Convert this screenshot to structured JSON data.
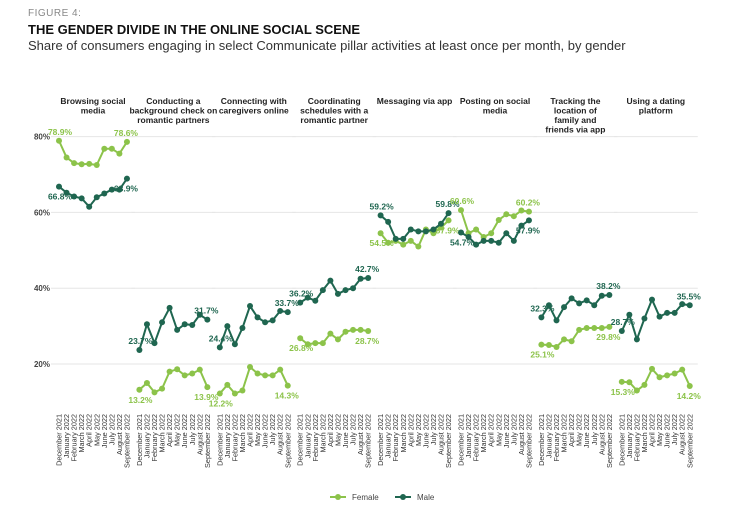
{
  "figure_label": "FIGURE 4:",
  "title": "THE GENDER DIVIDE IN THE ONLINE SOCIAL SCENE",
  "subtitle": "Share of consumers engaging in select Communicate pillar activities at least once per month, by gender",
  "chart_data": {
    "type": "line",
    "title": "THE GENDER DIVIDE IN THE ONLINE SOCIAL SCENE",
    "ylabel": "",
    "ylim": [
      10,
      85
    ],
    "yticks": [
      "20%",
      "40%",
      "60%",
      "80%"
    ],
    "ytick_values": [
      20,
      40,
      60,
      80
    ],
    "grid": true,
    "legend_placement": "bottom-center",
    "x": [
      "December 2021",
      "January 2022",
      "February 2022",
      "March 2022",
      "April 2022",
      "May 2022",
      "June 2022",
      "July 2022",
      "August 2022",
      "September 2022"
    ],
    "colors": {
      "Female": "#8cc34a",
      "Male": "#1f6650"
    },
    "panels": [
      {
        "title": [
          "Browsing social",
          "media"
        ],
        "series": [
          {
            "name": "Female",
            "values": [
              78.9,
              74.5,
              73.0,
              72.7,
              72.8,
              72.5,
              76.8,
              76.8,
              75.5,
              78.6
            ]
          },
          {
            "name": "Male",
            "values": [
              66.8,
              65.2,
              64.2,
              63.7,
              61.5,
              64.0,
              65.0,
              66.0,
              66.0,
              68.9
            ]
          }
        ]
      },
      {
        "title": [
          "Conducting a",
          "background check on",
          "romantic partners"
        ],
        "series": [
          {
            "name": "Female",
            "values": [
              13.2,
              15.0,
              12.5,
              13.5,
              18.0,
              18.6,
              17.0,
              17.5,
              18.5,
              13.9
            ]
          },
          {
            "name": "Male",
            "values": [
              23.7,
              30.5,
              25.5,
              31.0,
              34.8,
              29.0,
              30.5,
              30.3,
              33.0,
              31.7
            ]
          }
        ]
      },
      {
        "title": [
          "Connecting with",
          "caregivers online"
        ],
        "series": [
          {
            "name": "Female",
            "values": [
              12.2,
              14.5,
              12.2,
              13.0,
              19.2,
              17.5,
              17.0,
              17.0,
              18.5,
              14.3
            ]
          },
          {
            "name": "Male",
            "values": [
              24.4,
              30.0,
              25.2,
              29.5,
              35.3,
              32.3,
              31.0,
              31.5,
              34.0,
              33.7
            ]
          }
        ]
      },
      {
        "title": [
          "Coordinating",
          "schedules with a",
          "romantic partner"
        ],
        "series": [
          {
            "name": "Female",
            "values": [
              26.8,
              25.2,
              25.5,
              25.5,
              28.0,
              26.5,
              28.5,
              29.0,
              29.0,
              28.7
            ]
          },
          {
            "name": "Male",
            "values": [
              36.2,
              37.5,
              36.7,
              39.5,
              42.0,
              38.5,
              39.5,
              40.0,
              42.5,
              42.7
            ]
          }
        ]
      },
      {
        "title": [
          "Messaging via app"
        ],
        "series": [
          {
            "name": "Female",
            "values": [
              54.5,
              52.0,
              52.5,
              51.5,
              52.5,
              51.0,
              55.5,
              54.5,
              56.0,
              57.9
            ]
          },
          {
            "name": "Male",
            "values": [
              59.2,
              57.5,
              53.0,
              53.0,
              55.5,
              55.0,
              55.0,
              55.5,
              57.0,
              59.8
            ]
          }
        ]
      },
      {
        "title": [
          "Posting on social",
          "media"
        ],
        "series": [
          {
            "name": "Female",
            "values": [
              60.6,
              54.5,
              55.5,
              53.5,
              54.5,
              58.0,
              59.5,
              59.0,
              60.5,
              60.2
            ]
          },
          {
            "name": "Male",
            "values": [
              54.7,
              53.5,
              51.5,
              52.5,
              52.5,
              52.0,
              54.5,
              52.5,
              56.5,
              57.9
            ]
          }
        ]
      },
      {
        "title": [
          "Tracking the",
          "location of",
          "family and",
          "friends via app"
        ],
        "series": [
          {
            "name": "Female",
            "values": [
              25.1,
              25.0,
              24.5,
              26.5,
              26.0,
              29.0,
              29.5,
              29.5,
              29.5,
              29.8
            ]
          },
          {
            "name": "Male",
            "values": [
              32.3,
              35.5,
              31.5,
              35.0,
              37.3,
              36.0,
              36.8,
              35.5,
              38.0,
              38.2
            ]
          }
        ]
      },
      {
        "title": [
          "Using a dating",
          "platform"
        ],
        "series": [
          {
            "name": "Female",
            "values": [
              15.3,
              15.2,
              13.0,
              14.5,
              18.7,
              16.5,
              17.0,
              17.5,
              18.5,
              14.2
            ]
          },
          {
            "name": "Male",
            "values": [
              28.7,
              33.0,
              26.5,
              32.0,
              37.0,
              32.5,
              33.5,
              33.5,
              35.8,
              35.5
            ]
          }
        ]
      }
    ],
    "legend": [
      "Female",
      "Male"
    ]
  }
}
